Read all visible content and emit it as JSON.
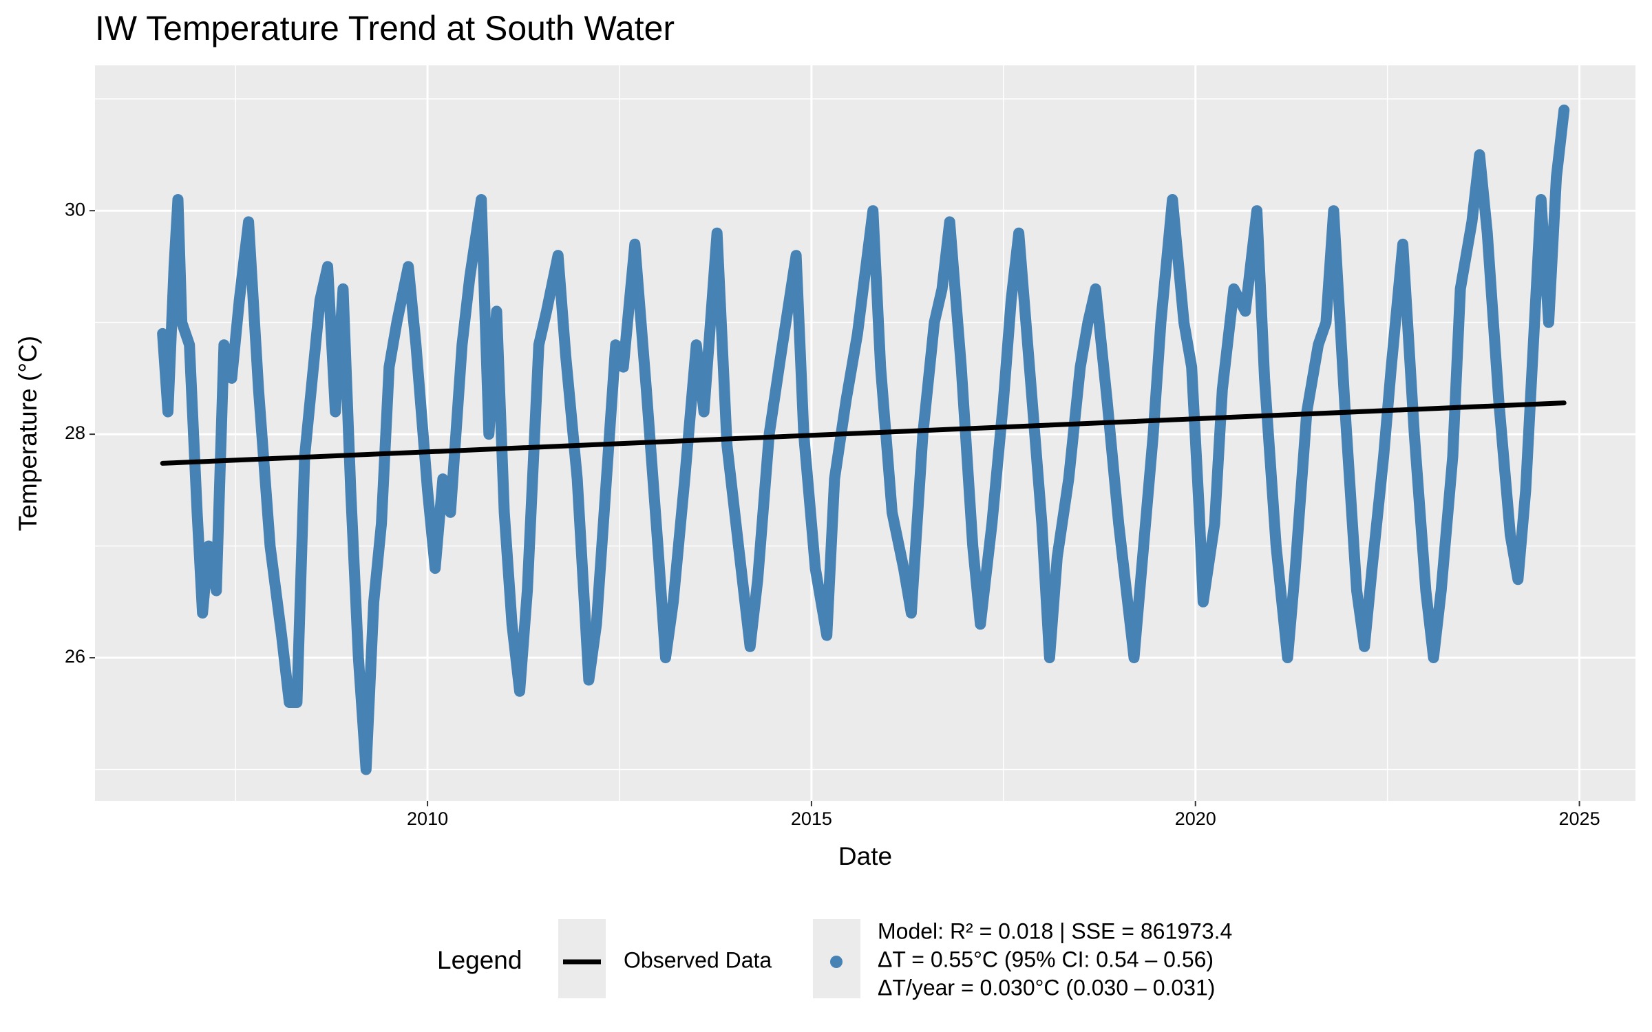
{
  "chart_data": {
    "type": "line",
    "title": "IW Temperature Trend at South Water",
    "x_label": "Date",
    "y_label": "Temperature (°C)",
    "xlim": [
      2005.67,
      2025.73
    ],
    "ylim": [
      24.72,
      31.3
    ],
    "xticks": [
      2010,
      2015,
      2020,
      2025
    ],
    "yticks": [
      26,
      28,
      30
    ],
    "x_minor_grid": [
      2007.5,
      2012.5,
      2017.5,
      2022.5
    ],
    "y_minor_grid": [
      25,
      27,
      29,
      31
    ],
    "grid": true,
    "legend_title": "Legend",
    "legend_position": "bottom",
    "series": [
      {
        "name": "Observed Data",
        "color": "#000000",
        "x": [
          2006.55,
          2024.8
        ],
        "values": [
          27.74,
          28.28
        ]
      },
      {
        "name": [
          "Model: R² = 0.018 | SSE = 861973.4",
          "ΔT = 0.55°C (95% CI: 0.54 – 0.56)",
          "ΔT/year = 0.030°C (0.030 – 0.031)"
        ],
        "color": "#4682b4",
        "x": [
          2006.55,
          2006.62,
          2006.7,
          2006.75,
          2006.8,
          2006.9,
          2007.0,
          2007.07,
          2007.15,
          2007.25,
          2007.35,
          2007.45,
          2007.55,
          2007.67,
          2007.8,
          2007.95,
          2008.1,
          2008.2,
          2008.3,
          2008.4,
          2008.5,
          2008.6,
          2008.7,
          2008.8,
          2008.9,
          2009.0,
          2009.1,
          2009.2,
          2009.3,
          2009.4,
          2009.5,
          2009.6,
          2009.75,
          2009.85,
          2010.0,
          2010.1,
          2010.2,
          2010.3,
          2010.45,
          2010.55,
          2010.7,
          2010.8,
          2010.9,
          2011.0,
          2011.1,
          2011.2,
          2011.3,
          2011.45,
          2011.55,
          2011.7,
          2011.8,
          2011.95,
          2012.1,
          2012.2,
          2012.3,
          2012.45,
          2012.55,
          2012.7,
          2012.85,
          2013.0,
          2013.1,
          2013.2,
          2013.35,
          2013.5,
          2013.6,
          2013.77,
          2013.9,
          2014.05,
          2014.2,
          2014.3,
          2014.45,
          2014.6,
          2014.8,
          2014.9,
          2015.05,
          2015.2,
          2015.3,
          2015.45,
          2015.6,
          2015.8,
          2015.9,
          2016.05,
          2016.2,
          2016.3,
          2016.45,
          2016.6,
          2016.7,
          2016.8,
          2016.95,
          2017.1,
          2017.2,
          2017.35,
          2017.5,
          2017.6,
          2017.7,
          2017.85,
          2018.0,
          2018.1,
          2018.2,
          2018.35,
          2018.5,
          2018.6,
          2018.7,
          2018.85,
          2019.0,
          2019.2,
          2019.3,
          2019.45,
          2019.55,
          2019.7,
          2019.85,
          2019.95,
          2020.05,
          2020.1,
          2020.25,
          2020.35,
          2020.5,
          2020.65,
          2020.8,
          2020.9,
          2021.05,
          2021.2,
          2021.3,
          2021.45,
          2021.6,
          2021.7,
          2021.8,
          2021.95,
          2022.1,
          2022.2,
          2022.3,
          2022.45,
          2022.55,
          2022.7,
          2022.85,
          2023.0,
          2023.1,
          2023.2,
          2023.35,
          2023.45,
          2023.6,
          2023.7,
          2023.8,
          2023.95,
          2024.1,
          2024.2,
          2024.3,
          2024.4,
          2024.5,
          2024.6,
          2024.7,
          2024.8
        ],
        "values": [
          28.9,
          28.2,
          29.5,
          30.1,
          29.0,
          28.8,
          27.3,
          26.4,
          27.0,
          26.6,
          28.8,
          28.5,
          29.2,
          29.9,
          28.4,
          27.0,
          26.2,
          25.6,
          25.6,
          27.8,
          28.5,
          29.2,
          29.5,
          28.2,
          29.3,
          27.5,
          26.0,
          25.0,
          26.5,
          27.2,
          28.6,
          29.0,
          29.5,
          28.8,
          27.5,
          26.8,
          27.6,
          27.3,
          28.8,
          29.4,
          30.1,
          28.0,
          29.1,
          27.3,
          26.3,
          25.7,
          26.6,
          28.8,
          29.1,
          29.6,
          28.7,
          27.6,
          25.8,
          26.3,
          27.3,
          28.8,
          28.6,
          29.7,
          28.4,
          27.0,
          26.0,
          26.5,
          27.6,
          28.8,
          28.2,
          29.8,
          27.9,
          27.0,
          26.1,
          26.7,
          28.0,
          28.7,
          29.6,
          28.0,
          26.8,
          26.2,
          27.6,
          28.3,
          28.9,
          30.0,
          28.6,
          27.3,
          26.8,
          26.4,
          28.0,
          29.0,
          29.3,
          29.9,
          28.6,
          27.0,
          26.3,
          27.2,
          28.3,
          29.2,
          29.8,
          28.5,
          27.2,
          26.0,
          26.9,
          27.6,
          28.6,
          29.0,
          29.3,
          28.3,
          27.2,
          26.0,
          26.8,
          28.0,
          29.0,
          30.1,
          29.0,
          28.6,
          27.3,
          26.5,
          27.2,
          28.4,
          29.3,
          29.1,
          30.0,
          28.5,
          27.0,
          26.0,
          26.8,
          28.2,
          28.8,
          29.0,
          30.0,
          28.2,
          26.6,
          26.1,
          26.8,
          27.8,
          28.6,
          29.7,
          28.0,
          26.6,
          26.0,
          26.6,
          27.8,
          29.3,
          29.9,
          30.5,
          29.8,
          28.3,
          27.1,
          26.7,
          27.5,
          28.8,
          30.1,
          29.0,
          30.3,
          30.9
        ]
      }
    ]
  }
}
